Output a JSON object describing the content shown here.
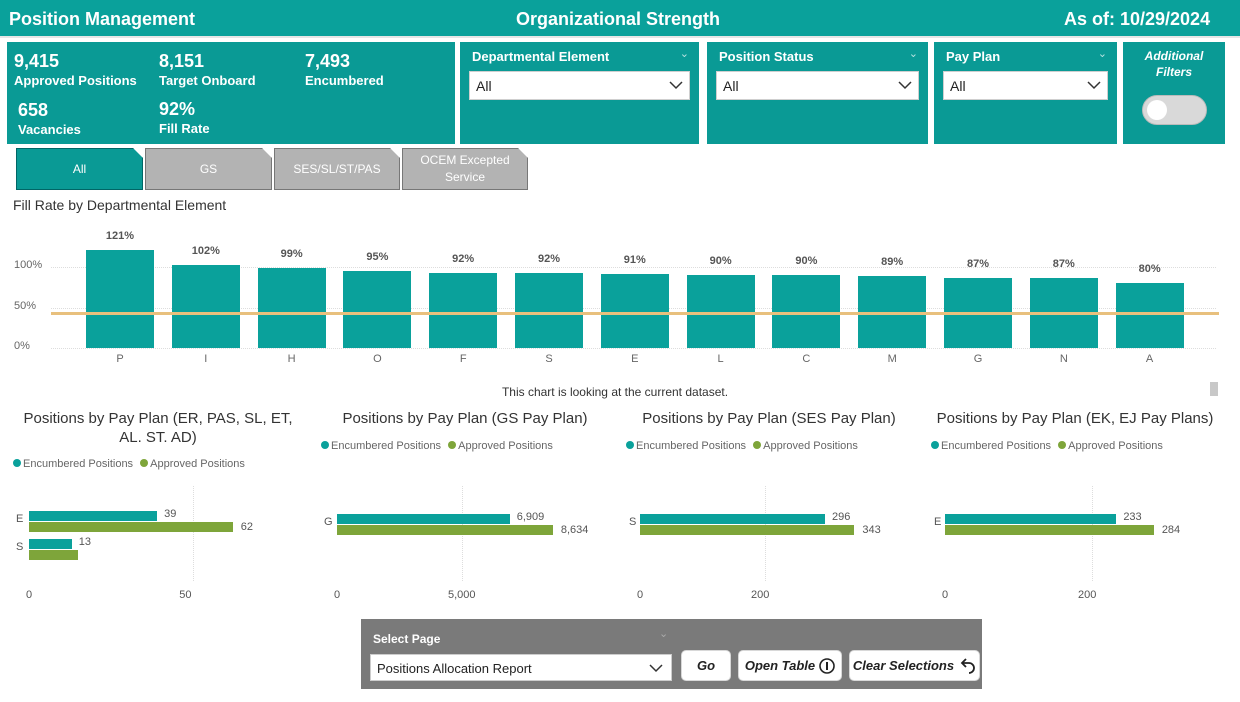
{
  "header": {
    "left_title": "Position Management",
    "center_title": "Organizational Strength",
    "as_of": "As of: 10/29/2024"
  },
  "kpis": [
    {
      "value": "9,415",
      "label": "Approved Positions"
    },
    {
      "value": "8,151",
      "label": "Target Onboard"
    },
    {
      "value": "7,493",
      "label": "Encumbered"
    },
    {
      "value": "658",
      "label": "Vacancies"
    },
    {
      "value": "92%",
      "label": "Fill Rate"
    }
  ],
  "filters": {
    "departmental_element": {
      "label": "Departmental Element",
      "value": "All"
    },
    "position_status": {
      "label": "Position Status",
      "value": "All"
    },
    "pay_plan": {
      "label": "Pay Plan",
      "value": "All"
    },
    "additional_filters": {
      "label_line1": "Additional",
      "label_line2": "Filters",
      "toggle_on": false
    }
  },
  "tabs": [
    {
      "label": "All",
      "active": true
    },
    {
      "label": "GS",
      "active": false
    },
    {
      "label": "SES/SL/ST/PAS",
      "active": false
    },
    {
      "label": "OCEM Excepted Service",
      "active": false
    }
  ],
  "colors": {
    "teal": "#0aa19b",
    "green": "#7ea53a",
    "target_line": "#e8c07d",
    "tab_inactive": "#b3b3b3"
  },
  "chart_data": [
    {
      "type": "bar",
      "title": "Fill Rate by Departmental Element",
      "categories": [
        "P",
        "I",
        "H",
        "O",
        "F",
        "S",
        "E",
        "L",
        "C",
        "M",
        "G",
        "N",
        "A"
      ],
      "values": [
        121,
        102,
        99,
        95,
        92,
        92,
        91,
        90,
        90,
        89,
        87,
        87,
        80
      ],
      "value_labels": [
        "121%",
        "102%",
        "99%",
        "95%",
        "92%",
        "92%",
        "91%",
        "90%",
        "90%",
        "89%",
        "87%",
        "87%",
        "80%"
      ],
      "yticks": [
        "0%",
        "50%",
        "100%"
      ],
      "ylim": [
        0,
        125
      ],
      "reference_line": 45,
      "footnote": "This chart is looking at the current dataset."
    },
    {
      "type": "bar",
      "orientation": "horizontal",
      "title": "Positions by Pay Plan (ER, PAS, SL, ET, AL. ST. AD)",
      "legend": [
        "Encumbered Positions",
        "Approved Positions"
      ],
      "categories": [
        "E",
        "S"
      ],
      "series": [
        {
          "name": "Encumbered Positions",
          "values": [
            39,
            13
          ]
        },
        {
          "name": "Approved Positions",
          "values": [
            62,
            null
          ],
          "approx_unlabeled": [
            null,
            15
          ]
        }
      ],
      "xticks": [
        "0",
        "50"
      ],
      "xlim": [
        0,
        70
      ]
    },
    {
      "type": "bar",
      "orientation": "horizontal",
      "title": "Positions by Pay Plan (GS Pay Plan)",
      "legend": [
        "Encumbered Positions",
        "Approved Positions"
      ],
      "categories": [
        "G"
      ],
      "series": [
        {
          "name": "Encumbered Positions",
          "values": [
            6909
          ],
          "labels": [
            "6,909"
          ]
        },
        {
          "name": "Approved Positions",
          "values": [
            8634
          ],
          "labels": [
            "8,634"
          ]
        }
      ],
      "xticks": [
        "0",
        "5,000"
      ],
      "xlim": [
        0,
        10000
      ]
    },
    {
      "type": "bar",
      "orientation": "horizontal",
      "title": "Positions by Pay Plan (SES Pay Plan)",
      "legend": [
        "Encumbered Positions",
        "Approved Positions"
      ],
      "categories": [
        "S"
      ],
      "series": [
        {
          "name": "Encumbered Positions",
          "values": [
            296
          ]
        },
        {
          "name": "Approved Positions",
          "values": [
            343
          ]
        }
      ],
      "xticks": [
        "0",
        "200"
      ],
      "xlim": [
        0,
        400
      ]
    },
    {
      "type": "bar",
      "orientation": "horizontal",
      "title": "Positions by Pay Plan (EK, EJ Pay Plans)",
      "legend": [
        "Encumbered Positions",
        "Approved Positions"
      ],
      "categories": [
        "E"
      ],
      "series": [
        {
          "name": "Encumbered Positions",
          "values": [
            233
          ]
        },
        {
          "name": "Approved Positions",
          "values": [
            284
          ]
        }
      ],
      "xticks": [
        "0",
        "200"
      ],
      "xlim": [
        0,
        340
      ]
    }
  ],
  "footer": {
    "select_page_label": "Select Page",
    "page_value": "Positions Allocation Report",
    "go_label": "Go",
    "open_table_label": "Open Table",
    "clear_label": "Clear Selections"
  }
}
